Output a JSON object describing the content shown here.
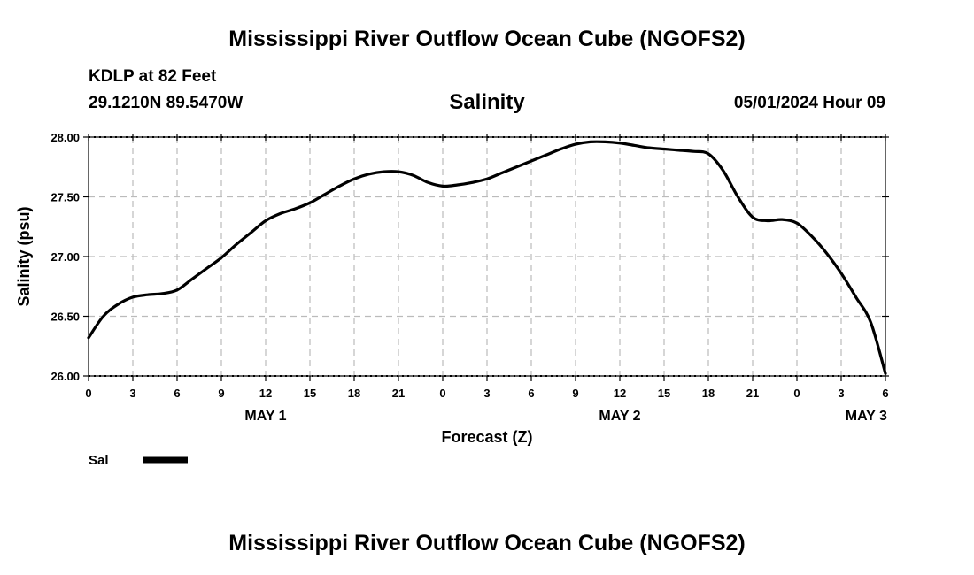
{
  "page": {
    "title_top": "Mississippi River Outflow Ocean Cube (NGOFS2)",
    "title_bottom": "Mississippi River Outflow Ocean Cube (NGOFS2)",
    "station_line": "KDLP at 82 Feet",
    "coords_line": "29.1210N  89.5470W",
    "datetime": "05/01/2024 Hour 09"
  },
  "chart_data": {
    "type": "line",
    "title": "Salinity",
    "xlabel": "Forecast (Z)",
    "ylabel": "Salinity (psu)",
    "xlim": [
      0,
      54
    ],
    "ylim": [
      26.0,
      28.0
    ],
    "x_ticks": [
      {
        "hour": 0,
        "label": "0"
      },
      {
        "hour": 3,
        "label": "3"
      },
      {
        "hour": 6,
        "label": "6"
      },
      {
        "hour": 9,
        "label": "9"
      },
      {
        "hour": 12,
        "label": "12"
      },
      {
        "hour": 15,
        "label": "15"
      },
      {
        "hour": 18,
        "label": "18"
      },
      {
        "hour": 21,
        "label": "21"
      },
      {
        "hour": 24,
        "label": "0"
      },
      {
        "hour": 27,
        "label": "3"
      },
      {
        "hour": 30,
        "label": "6"
      },
      {
        "hour": 33,
        "label": "9"
      },
      {
        "hour": 36,
        "label": "12"
      },
      {
        "hour": 39,
        "label": "15"
      },
      {
        "hour": 42,
        "label": "18"
      },
      {
        "hour": 45,
        "label": "21"
      },
      {
        "hour": 48,
        "label": "0"
      },
      {
        "hour": 51,
        "label": "3"
      },
      {
        "hour": 54,
        "label": "6"
      }
    ],
    "y_ticks": [
      {
        "value": 26.0,
        "label": "26.00"
      },
      {
        "value": 26.5,
        "label": "26.50"
      },
      {
        "value": 27.0,
        "label": "27.00"
      },
      {
        "value": 27.5,
        "label": "27.50"
      },
      {
        "value": 28.0,
        "label": "28.00"
      }
    ],
    "day_labels": [
      {
        "hour": 12,
        "label": "MAY 1"
      },
      {
        "hour": 36,
        "label": "MAY 2"
      },
      {
        "hour": 52.7,
        "label": "MAY 3"
      }
    ],
    "grid": true,
    "legend": {
      "label": "Sal",
      "position": "bottom-left"
    },
    "series": [
      {
        "name": "Sal",
        "color": "#000000",
        "x": [
          0,
          1,
          2,
          3,
          4,
          5,
          6,
          7,
          8,
          9,
          10,
          11,
          12,
          13,
          14,
          15,
          16,
          17,
          18,
          19,
          20,
          21,
          22,
          23,
          24,
          25,
          26,
          27,
          28,
          29,
          30,
          31,
          32,
          33,
          34,
          35,
          36,
          37,
          38,
          39,
          40,
          41,
          42,
          43,
          44,
          45,
          46,
          47,
          48,
          49,
          50,
          51,
          52,
          53,
          54
        ],
        "values": [
          26.32,
          26.5,
          26.6,
          26.66,
          26.68,
          26.69,
          26.72,
          26.81,
          26.9,
          26.99,
          27.1,
          27.2,
          27.3,
          27.36,
          27.4,
          27.45,
          27.52,
          27.59,
          27.65,
          27.69,
          27.71,
          27.71,
          27.68,
          27.62,
          27.59,
          27.6,
          27.62,
          27.65,
          27.7,
          27.75,
          27.8,
          27.85,
          27.9,
          27.94,
          27.96,
          27.96,
          27.95,
          27.93,
          27.91,
          27.9,
          27.89,
          27.88,
          27.86,
          27.72,
          27.5,
          27.33,
          27.3,
          27.31,
          27.28,
          27.17,
          27.03,
          26.86,
          26.66,
          26.45,
          26.02
        ]
      }
    ]
  }
}
